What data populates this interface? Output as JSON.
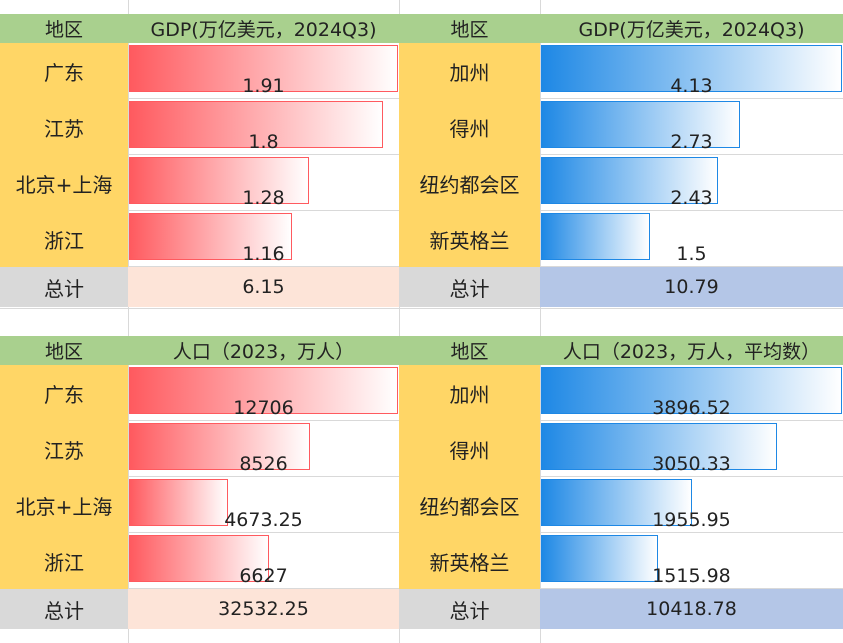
{
  "chart_data": [
    {
      "type": "table",
      "title": "",
      "header_region": "地区",
      "header_value": "GDP(万亿美元，2024Q3)",
      "categories": [
        "广东",
        "江苏",
        "北京+上海",
        "浙江"
      ],
      "values": [
        1.91,
        1.8,
        1.28,
        1.16
      ],
      "value_labels": [
        "1.91",
        "1.8",
        "1.28",
        "1.16"
      ],
      "total_label": "总计",
      "total_value": "6.15",
      "bar_color": "#ff5a5f",
      "scale_max": 1.91
    },
    {
      "type": "table",
      "title": "",
      "header_region": "地区",
      "header_value": "GDP(万亿美元，2024Q3)",
      "categories": [
        "加州",
        "得州",
        "纽约都会区",
        "新英格兰"
      ],
      "values": [
        4.13,
        2.73,
        2.43,
        1.5
      ],
      "value_labels": [
        "4.13",
        "2.73",
        "2.43",
        "1.5"
      ],
      "total_label": "总计",
      "total_value": "10.79",
      "bar_color": "#1e88e5",
      "scale_max": 4.13
    },
    {
      "type": "table",
      "title": "",
      "header_region": "地区",
      "header_value": "人口（2023，万人）",
      "categories": [
        "广东",
        "江苏",
        "北京+上海",
        "浙江"
      ],
      "values": [
        12706,
        8526,
        4673.25,
        6627
      ],
      "value_labels": [
        "12706",
        "8526",
        "4673.25",
        "6627"
      ],
      "total_label": "总计",
      "total_value": "32532.25",
      "bar_color": "#ff5a5f",
      "scale_max": 12706
    },
    {
      "type": "table",
      "title": "",
      "header_region": "地区",
      "header_value": "人口（2023，万人，平均数）",
      "categories": [
        "加州",
        "得州",
        "纽约都会区",
        "新英格兰"
      ],
      "values": [
        3896.52,
        3050.33,
        1955.95,
        1515.98
      ],
      "value_labels": [
        "3896.52",
        "3050.33",
        "1955.95",
        "1515.98"
      ],
      "total_label": "总计",
      "total_value": "10418.78",
      "bar_color": "#1e88e5",
      "scale_max": 3896.52
    }
  ]
}
